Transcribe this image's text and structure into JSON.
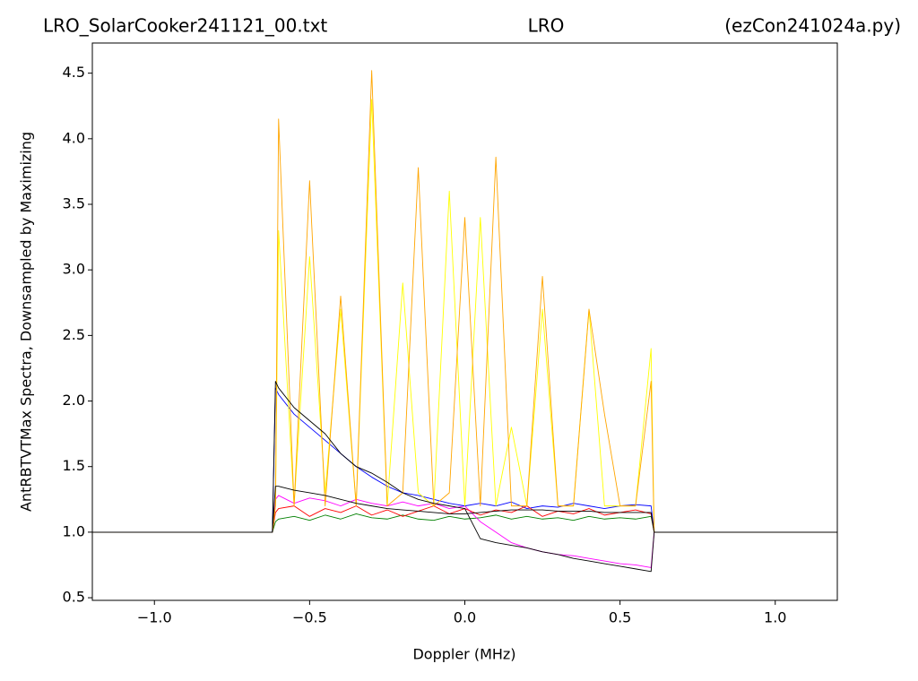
{
  "chart_data": {
    "type": "line",
    "titles": [
      "LRO_SolarCooker241121_00.txt",
      "LRO",
      "(ezCon241024a.py)"
    ],
    "xlabel": "Doppler (MHz)",
    "ylabel": "AntRBTVTMax Spectra, Downsampled by Maximizing",
    "x": [
      -1.2,
      -0.62,
      -0.61,
      -0.6,
      -0.55,
      -0.5,
      -0.45,
      -0.4,
      -0.35,
      -0.3,
      -0.25,
      -0.2,
      -0.15,
      -0.1,
      -0.05,
      0,
      0.05,
      0.1,
      0.15,
      0.2,
      0.25,
      0.3,
      0.35,
      0.4,
      0.45,
      0.5,
      0.55,
      0.6,
      0.61,
      1.2
    ],
    "series": [
      {
        "color": "#008000",
        "values": [
          1,
          1,
          1.08,
          1.1,
          1.12,
          1.09,
          1.13,
          1.1,
          1.14,
          1.11,
          1.1,
          1.13,
          1.1,
          1.09,
          1.12,
          1.1,
          1.11,
          1.13,
          1.1,
          1.12,
          1.1,
          1.11,
          1.09,
          1.12,
          1.1,
          1.11,
          1.1,
          1.12,
          1,
          1
        ]
      },
      {
        "color": "#ff00ff",
        "values": [
          1,
          1,
          1.25,
          1.28,
          1.22,
          1.26,
          1.24,
          1.2,
          1.25,
          1.22,
          1.2,
          1.23,
          1.2,
          1.22,
          1.18,
          1.2,
          1.08,
          1.0,
          0.92,
          0.88,
          0.85,
          0.83,
          0.82,
          0.8,
          0.78,
          0.76,
          0.75,
          0.73,
          1,
          1
        ]
      },
      {
        "color": "#0000ff",
        "values": [
          1,
          1,
          2.1,
          2.05,
          1.9,
          1.8,
          1.7,
          1.6,
          1.5,
          1.42,
          1.35,
          1.3,
          1.28,
          1.25,
          1.22,
          1.2,
          1.22,
          1.2,
          1.23,
          1.18,
          1.2,
          1.19,
          1.22,
          1.2,
          1.18,
          1.2,
          1.21,
          1.2,
          1,
          1
        ]
      },
      {
        "color": "#ff0000",
        "values": [
          1,
          1,
          1.15,
          1.18,
          1.2,
          1.12,
          1.18,
          1.15,
          1.2,
          1.13,
          1.17,
          1.12,
          1.16,
          1.2,
          1.14,
          1.18,
          1.13,
          1.17,
          1.15,
          1.2,
          1.12,
          1.16,
          1.14,
          1.18,
          1.13,
          1.15,
          1.17,
          1.14,
          1,
          1
        ]
      },
      {
        "color": "#ffff00",
        "values": [
          1,
          1,
          1.2,
          3.3,
          1.2,
          3.1,
          1.3,
          2.7,
          1.2,
          4.3,
          1.2,
          2.9,
          1.3,
          1.2,
          3.6,
          1.2,
          3.4,
          1.2,
          1.8,
          1.2,
          2.7,
          1.2,
          1.2,
          2.7,
          1.2,
          1.2,
          1.2,
          2.4,
          1,
          1
        ]
      },
      {
        "color": "#ffa500",
        "values": [
          1,
          1,
          1.2,
          4.15,
          1.2,
          3.68,
          1.2,
          2.8,
          1.2,
          4.52,
          1.2,
          1.3,
          3.78,
          1.2,
          1.3,
          3.4,
          1.2,
          3.86,
          1.2,
          1.2,
          2.95,
          1.2,
          1.2,
          2.7,
          1.9,
          1.2,
          1.2,
          2.15,
          1,
          1
        ]
      },
      {
        "color": "#000000",
        "values": [
          1,
          1,
          2.15,
          2.1,
          1.95,
          1.85,
          1.75,
          1.6,
          1.5,
          1.45,
          1.38,
          1.3,
          1.25,
          1.22,
          1.2,
          1.18,
          0.95,
          0.92,
          0.9,
          0.88,
          0.85,
          0.83,
          0.8,
          0.78,
          0.76,
          0.74,
          0.72,
          0.7,
          1,
          1
        ]
      },
      {
        "color": "#000000",
        "values": [
          1,
          1,
          1.35,
          1.35,
          1.32,
          1.3,
          1.28,
          1.25,
          1.22,
          1.2,
          1.18,
          1.17,
          1.16,
          1.15,
          1.14,
          1.14,
          1.15,
          1.16,
          1.17,
          1.17,
          1.17,
          1.16,
          1.16,
          1.16,
          1.15,
          1.15,
          1.15,
          1.15,
          1,
          1
        ]
      }
    ],
    "xlim": [
      -1.2,
      1.2
    ],
    "ylim": [
      0.48,
      4.73
    ],
    "xticks": [
      {
        "value": -1,
        "label": "−1.0"
      },
      {
        "value": -0.5,
        "label": "−0.5"
      },
      {
        "value": 0,
        "label": "0.0"
      },
      0.5,
      {
        "value": 1,
        "label": "1.0"
      }
    ],
    "yticks": [
      0.5,
      {
        "value": 1,
        "label": "1.0"
      },
      1.5,
      {
        "value": 2,
        "label": "2.0"
      },
      2.5,
      {
        "value": 3,
        "label": "3.0"
      },
      3.5,
      {
        "value": 4,
        "label": "4.0"
      },
      4.5
    ]
  }
}
